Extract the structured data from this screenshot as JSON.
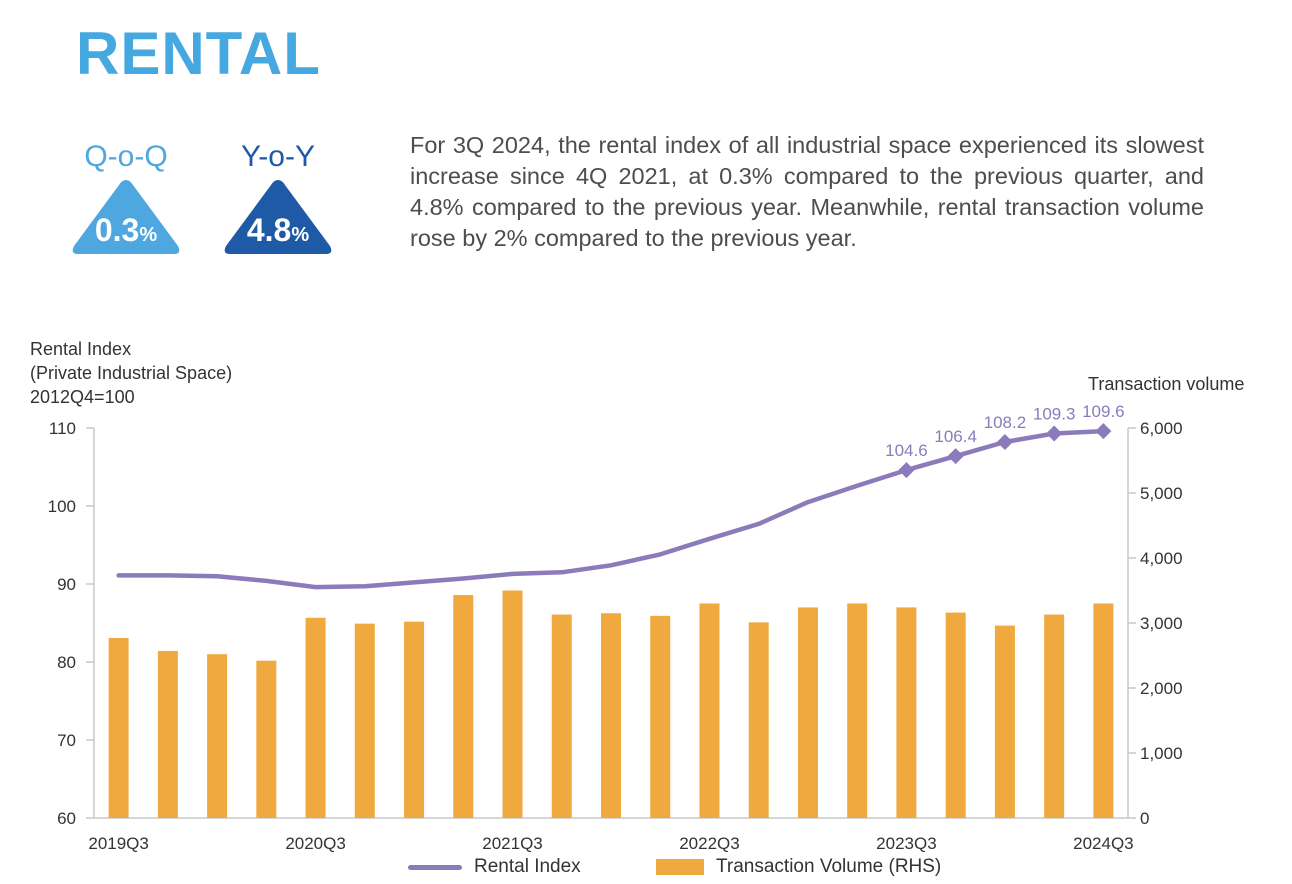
{
  "page": {
    "title": "RENTAL",
    "description": "For 3Q 2024, the rental index of all industrial space experienced its slowest increase since 4Q 2021, at 0.3% compared to the previous quarter, and 4.8% compared to the previous year. Meanwhile, rental transaction volume rose by 2% compared to the previous year."
  },
  "kpis": [
    {
      "label": "Q-o-Q",
      "value": "0.3",
      "unit": "%",
      "color": "#4ea8df",
      "label_color": "#4ea8df"
    },
    {
      "label": "Y-o-Y",
      "value": "4.8",
      "unit": "%",
      "color": "#1f5aa6",
      "label_color": "#1f5aa6"
    }
  ],
  "chart_data": {
    "type": "bar",
    "left_axis_title": [
      "Rental Index",
      "(Private Industrial Space)",
      "2012Q4=100"
    ],
    "right_axis_title": "Transaction volume",
    "categories": [
      "2019Q3",
      "2019Q4",
      "2020Q1",
      "2020Q2",
      "2020Q3",
      "2020Q4",
      "2021Q1",
      "2021Q2",
      "2021Q3",
      "2021Q4",
      "2022Q1",
      "2022Q2",
      "2022Q3",
      "2022Q4",
      "2023Q1",
      "2023Q2",
      "2023Q3",
      "2023Q4",
      "2024Q1",
      "2024Q2",
      "2024Q3"
    ],
    "x_tick_labels": [
      "2019Q3",
      "2020Q3",
      "2021Q3",
      "2022Q3",
      "2023Q3",
      "2024Q3"
    ],
    "x_tick_indices": [
      0,
      4,
      8,
      12,
      16,
      20
    ],
    "left_ylim": [
      60,
      110
    ],
    "left_ticks": [
      "60",
      "70",
      "80",
      "90",
      "100",
      "110"
    ],
    "left_tick_values": [
      60,
      70,
      80,
      90,
      100,
      110
    ],
    "right_ylim": [
      0,
      6000
    ],
    "right_ticks": [
      "0",
      "1,000",
      "2,000",
      "3,000",
      "4,000",
      "5,000",
      "6,000"
    ],
    "right_tick_values": [
      0,
      1000,
      2000,
      3000,
      4000,
      5000,
      6000
    ],
    "series": [
      {
        "name": "Rental Index",
        "kind": "line",
        "axis": "left",
        "color": "#8c7bbb",
        "values": [
          91.1,
          91.1,
          91.0,
          90.4,
          89.6,
          89.7,
          90.2,
          90.7,
          91.3,
          91.5,
          92.4,
          93.8,
          95.8,
          97.7,
          100.5,
          102.6,
          104.6,
          106.4,
          108.2,
          109.3,
          109.6
        ],
        "labels": {
          "16": "104.6",
          "17": "106.4",
          "18": "108.2",
          "19": "109.3",
          "20": "109.6"
        }
      },
      {
        "name": "Transaction Volume (RHS)",
        "kind": "bar",
        "axis": "right",
        "color": "#f0a93e",
        "values": [
          2770,
          2570,
          2520,
          2420,
          3080,
          2990,
          3020,
          3430,
          3500,
          3130,
          3150,
          3110,
          3300,
          3010,
          3240,
          3300,
          3240,
          3160,
          2960,
          3130,
          3300
        ]
      }
    ]
  }
}
